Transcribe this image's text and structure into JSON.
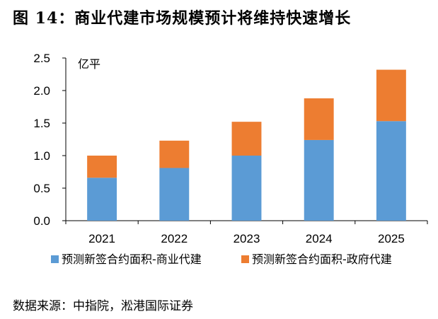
{
  "figure": {
    "title": "图 14：商业代建市场规模预计将维持快速增长",
    "source": "数据来源：中指院，淞港国际证券"
  },
  "chart_data": {
    "type": "bar",
    "stacked": true,
    "unit_label": "亿平",
    "categories": [
      "2021",
      "2022",
      "2023",
      "2024",
      "2025"
    ],
    "ylim": [
      0,
      2.5
    ],
    "yticks": [
      "0.0",
      "0.5",
      "1.0",
      "1.5",
      "2.0",
      "2.5"
    ],
    "legend_position": "bottom",
    "series": [
      {
        "name": "预测新签合约面积-商业代建",
        "color": "#5B9BD5",
        "values": [
          0.66,
          0.81,
          1.0,
          1.24,
          1.53
        ]
      },
      {
        "name": "预测新签合约面积-政府代建",
        "color": "#ED7D31",
        "values": [
          0.34,
          0.42,
          0.52,
          0.64,
          0.79
        ]
      }
    ]
  }
}
